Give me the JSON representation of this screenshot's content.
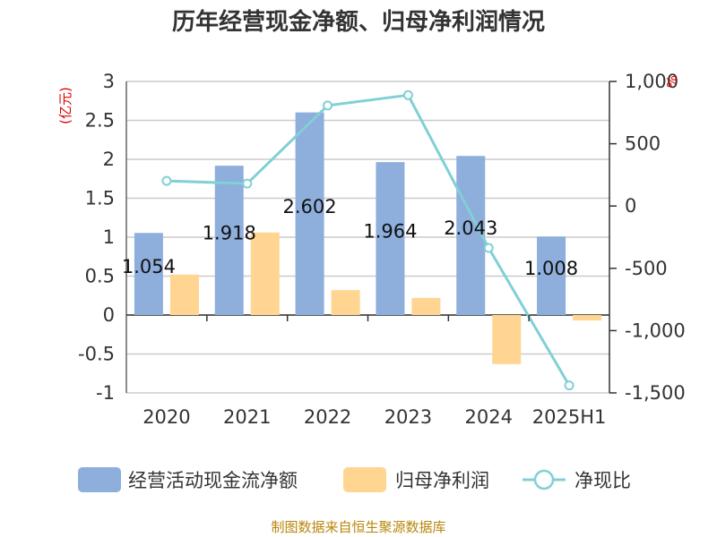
{
  "chart_data": {
    "type": "bar",
    "title": "历年经营现金净额、归母净利润情况",
    "categories": [
      "2020",
      "2021",
      "2022",
      "2023",
      "2024",
      "2025H1"
    ],
    "series": [
      {
        "name": "经营活动现金流净额",
        "type": "bar",
        "axis": "left",
        "color": "#8eaedb",
        "values": [
          1.054,
          1.918,
          2.602,
          1.964,
          2.043,
          1.008
        ]
      },
      {
        "name": "归母净利润",
        "type": "bar",
        "axis": "left",
        "color": "#ffd591",
        "values": [
          0.52,
          1.06,
          0.32,
          0.22,
          -0.63,
          -0.07
        ]
      },
      {
        "name": "净现比",
        "type": "line",
        "axis": "right",
        "color": "#80d0d6",
        "values": [
          202,
          180,
          807,
          890,
          -336,
          -1440
        ]
      }
    ],
    "data_labels": [
      "1.054",
      "1.918",
      "2.602",
      "1.964",
      "2.043",
      "1.008"
    ],
    "left_axis": {
      "unit": "(亿元)",
      "ylim": [
        -1,
        3
      ],
      "ticks": [
        "3",
        "2.5",
        "2",
        "1.5",
        "1",
        "0.5",
        "0",
        "-0.5",
        "-1"
      ]
    },
    "right_axis": {
      "unit": "%",
      "ylim": [
        -1500,
        1000
      ],
      "ticks": [
        "1,000",
        "500",
        "0",
        "-500",
        "-1,000",
        "-1,500"
      ]
    },
    "grid": true,
    "legend_position": "bottom"
  },
  "source": "制图数据来自恒生聚源数据库"
}
